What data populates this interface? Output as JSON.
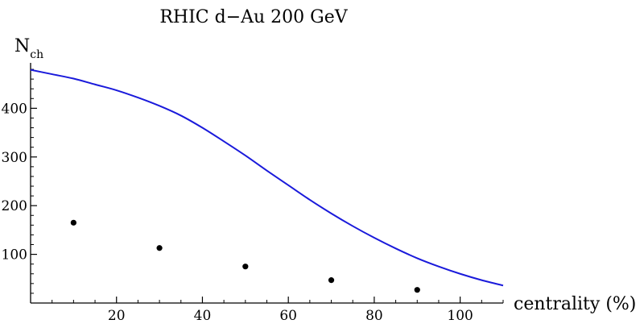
{
  "chart_data": {
    "type": "line",
    "title": "RHIC d−Au 200 GeV",
    "xlabel": "centrality (%)",
    "ylabel": {
      "main": "N",
      "sub": "ch"
    },
    "xlim": [
      0,
      110
    ],
    "ylim": [
      0,
      490
    ],
    "xticks": [
      20,
      40,
      60,
      80,
      100
    ],
    "yticks": [
      100,
      200,
      300,
      400
    ],
    "xticks_minor": [
      5,
      10,
      15,
      25,
      30,
      35,
      45,
      50,
      55,
      65,
      70,
      75,
      85,
      90,
      95,
      105,
      110
    ],
    "yticks_minor": [
      20,
      40,
      60,
      80,
      120,
      140,
      160,
      180,
      220,
      240,
      260,
      280,
      320,
      340,
      360,
      380,
      420,
      440,
      460,
      480
    ],
    "grid": false,
    "series": [
      {
        "kind": "line",
        "color": "#1a1adb",
        "x": [
          0,
          5,
          10,
          15,
          20,
          25,
          30,
          35,
          40,
          45,
          50,
          55,
          60,
          65,
          70,
          75,
          80,
          85,
          90,
          95,
          100,
          105,
          110
        ],
        "y": [
          479,
          470,
          461,
          449,
          437,
          422,
          405,
          385,
          360,
          332,
          303,
          272,
          242,
          212,
          184,
          158,
          134,
          112,
          92,
          75,
          60,
          47,
          36
        ]
      },
      {
        "kind": "scatter",
        "color": "#000000",
        "x": [
          10,
          30,
          50,
          70,
          90
        ],
        "y": [
          165,
          113,
          75,
          47,
          27
        ]
      }
    ]
  }
}
